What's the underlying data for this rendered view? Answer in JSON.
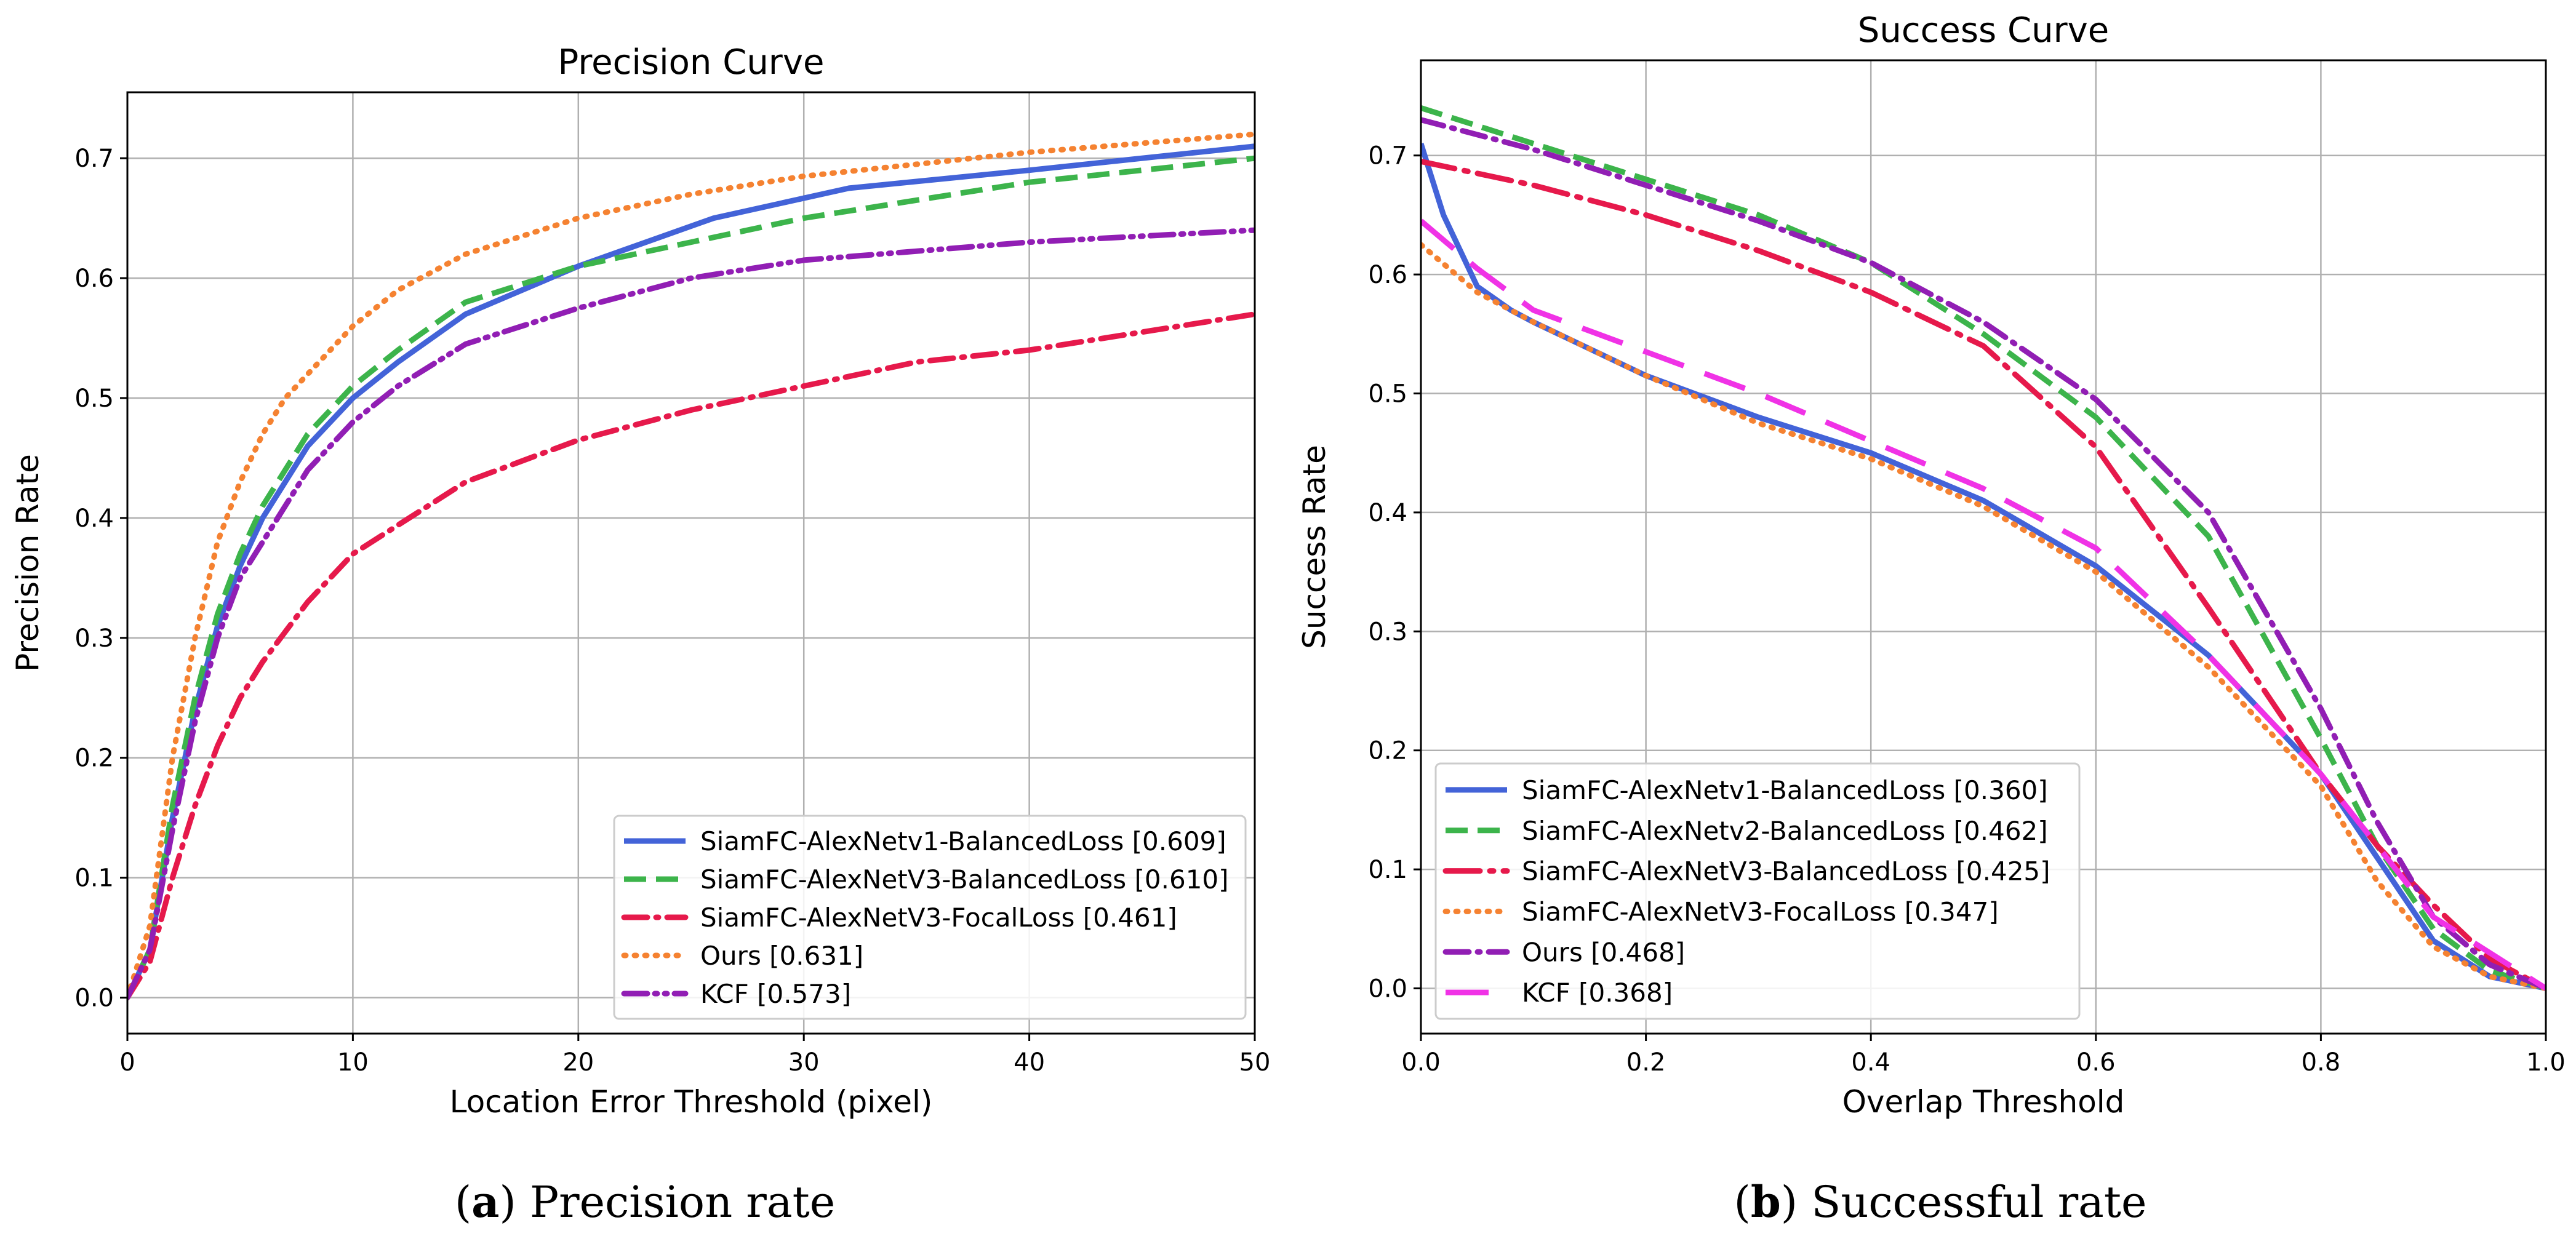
{
  "chart_data": [
    {
      "type": "line",
      "title": "Precision Curve",
      "xlabel": "Location Error Threshold (pixel)",
      "ylabel": "Precision Rate",
      "xlim": [
        0,
        50
      ],
      "ylim": [
        -0.03,
        0.755
      ],
      "xticks": [
        0,
        10,
        20,
        30,
        40,
        50
      ],
      "yticks": [
        0.0,
        0.1,
        0.2,
        0.3,
        0.4,
        0.5,
        0.6,
        0.7
      ],
      "xtick_labels": [
        "0",
        "10",
        "20",
        "30",
        "40",
        "50"
      ],
      "ytick_labels": [
        "0.0",
        "0.1",
        "0.2",
        "0.3",
        "0.4",
        "0.5",
        "0.6",
        "0.7"
      ],
      "grid": true,
      "legend_position": "lower-right",
      "caption": {
        "label": "a",
        "text": "Precision rate"
      },
      "series": [
        {
          "name": "SiamFC-AlexNetv1-BalancedLoss [0.609]",
          "color": "#4363d8",
          "dash": "solid",
          "x": [
            0,
            1,
            2,
            3,
            4,
            5,
            6,
            7,
            8,
            10,
            12,
            15,
            20,
            26,
            32,
            40,
            50
          ],
          "y": [
            0,
            0.04,
            0.15,
            0.24,
            0.31,
            0.36,
            0.4,
            0.43,
            0.46,
            0.5,
            0.53,
            0.57,
            0.61,
            0.65,
            0.675,
            0.69,
            0.71
          ]
        },
        {
          "name": "SiamFC-AlexNetV3-BalancedLoss [0.610]",
          "color": "#3cb44b",
          "dash": "dashed",
          "x": [
            0,
            1,
            2,
            3,
            4,
            5,
            6,
            7,
            8,
            10,
            12,
            15,
            20,
            25,
            30,
            40,
            50
          ],
          "y": [
            0,
            0.04,
            0.16,
            0.25,
            0.32,
            0.37,
            0.41,
            0.44,
            0.47,
            0.51,
            0.54,
            0.58,
            0.61,
            0.63,
            0.65,
            0.68,
            0.7
          ]
        },
        {
          "name": "SiamFC-AlexNetV3-FocalLoss [0.461]",
          "color": "#e6194b",
          "dash": "dashdot",
          "x": [
            0,
            1,
            2,
            3,
            4,
            5,
            6,
            8,
            10,
            15,
            20,
            25,
            30,
            35,
            40,
            50
          ],
          "y": [
            0,
            0.03,
            0.1,
            0.16,
            0.21,
            0.25,
            0.28,
            0.33,
            0.37,
            0.43,
            0.465,
            0.49,
            0.51,
            0.53,
            0.54,
            0.57
          ]
        },
        {
          "name": "Ours [0.631]",
          "color": "#f58231",
          "dash": "dotted",
          "x": [
            0,
            1,
            2,
            3,
            4,
            5,
            6,
            7,
            8,
            10,
            12,
            15,
            20,
            25,
            30,
            40,
            50
          ],
          "y": [
            0,
            0.06,
            0.2,
            0.3,
            0.38,
            0.43,
            0.47,
            0.5,
            0.52,
            0.56,
            0.59,
            0.62,
            0.65,
            0.67,
            0.685,
            0.705,
            0.72
          ]
        },
        {
          "name": "KCF [0.573]",
          "color": "#911eb4",
          "dash": "dashdotdot",
          "x": [
            0,
            1,
            2,
            3,
            4,
            5,
            6,
            7,
            8,
            10,
            12,
            15,
            20,
            25,
            30,
            40,
            50
          ],
          "y": [
            0,
            0.04,
            0.14,
            0.23,
            0.3,
            0.35,
            0.38,
            0.41,
            0.44,
            0.48,
            0.51,
            0.545,
            0.575,
            0.6,
            0.615,
            0.63,
            0.64
          ]
        }
      ]
    },
    {
      "type": "line",
      "title": "Success Curve",
      "xlabel": "Overlap Threshold",
      "ylabel": "Success Rate",
      "xlim": [
        0,
        1
      ],
      "ylim": [
        -0.038,
        0.78
      ],
      "xticks": [
        0.0,
        0.2,
        0.4,
        0.6,
        0.8,
        1.0
      ],
      "yticks": [
        0.0,
        0.1,
        0.2,
        0.3,
        0.4,
        0.5,
        0.6,
        0.7
      ],
      "xtick_labels": [
        "0.0",
        "0.2",
        "0.4",
        "0.6",
        "0.8",
        "1.0"
      ],
      "ytick_labels": [
        "0.0",
        "0.1",
        "0.2",
        "0.3",
        "0.4",
        "0.5",
        "0.6",
        "0.7"
      ],
      "grid": true,
      "legend_position": "lower-left",
      "caption": {
        "label": "b",
        "text": "Successful rate"
      },
      "series": [
        {
          "name": "SiamFC-AlexNetv1-BalancedLoss [0.360]",
          "color": "#4363d8",
          "dash": "solid",
          "x": [
            0,
            0.02,
            0.05,
            0.08,
            0.1,
            0.2,
            0.3,
            0.4,
            0.5,
            0.6,
            0.7,
            0.8,
            0.85,
            0.9,
            0.95,
            1.0
          ],
          "y": [
            0.71,
            0.65,
            0.59,
            0.57,
            0.56,
            0.515,
            0.48,
            0.45,
            0.41,
            0.355,
            0.28,
            0.18,
            0.11,
            0.04,
            0.01,
            0
          ]
        },
        {
          "name": "SiamFC-AlexNetv2-BalancedLoss [0.462]",
          "color": "#3cb44b",
          "dash": "dashed",
          "x": [
            0,
            0.1,
            0.2,
            0.3,
            0.4,
            0.5,
            0.6,
            0.7,
            0.8,
            0.85,
            0.9,
            0.95,
            1.0
          ],
          "y": [
            0.74,
            0.71,
            0.68,
            0.65,
            0.61,
            0.55,
            0.48,
            0.38,
            0.21,
            0.12,
            0.05,
            0.015,
            0
          ]
        },
        {
          "name": "SiamFC-AlexNetV3-BalancedLoss [0.425]",
          "color": "#e6194b",
          "dash": "longdashdot",
          "x": [
            0,
            0.1,
            0.2,
            0.3,
            0.4,
            0.5,
            0.6,
            0.7,
            0.8,
            0.85,
            0.9,
            0.95,
            1.0
          ],
          "y": [
            0.695,
            0.675,
            0.65,
            0.62,
            0.585,
            0.54,
            0.455,
            0.32,
            0.18,
            0.12,
            0.07,
            0.025,
            0
          ]
        },
        {
          "name": "SiamFC-AlexNetV3-FocalLoss [0.347]",
          "color": "#f58231",
          "dash": "dotted",
          "x": [
            0,
            0.05,
            0.1,
            0.2,
            0.3,
            0.4,
            0.5,
            0.6,
            0.7,
            0.8,
            0.85,
            0.9,
            0.95,
            1.0
          ],
          "y": [
            0.625,
            0.585,
            0.56,
            0.515,
            0.475,
            0.445,
            0.405,
            0.35,
            0.27,
            0.17,
            0.09,
            0.035,
            0.01,
            0
          ]
        },
        {
          "name": "Ours [0.468]",
          "color": "#911eb4",
          "dash": "dashdot",
          "x": [
            0,
            0.1,
            0.2,
            0.3,
            0.4,
            0.5,
            0.6,
            0.7,
            0.8,
            0.85,
            0.9,
            0.95,
            1.0
          ],
          "y": [
            0.73,
            0.705,
            0.675,
            0.645,
            0.61,
            0.56,
            0.495,
            0.4,
            0.235,
            0.14,
            0.06,
            0.02,
            0
          ]
        },
        {
          "name": "KCF [0.368]",
          "color": "#f032e6",
          "dash": "longdash",
          "x": [
            0,
            0.05,
            0.1,
            0.2,
            0.3,
            0.4,
            0.5,
            0.6,
            0.7,
            0.8,
            0.85,
            0.9,
            0.95,
            1.0
          ],
          "y": [
            0.645,
            0.605,
            0.57,
            0.535,
            0.5,
            0.46,
            0.42,
            0.37,
            0.28,
            0.18,
            0.12,
            0.06,
            0.03,
            0
          ]
        }
      ]
    }
  ]
}
